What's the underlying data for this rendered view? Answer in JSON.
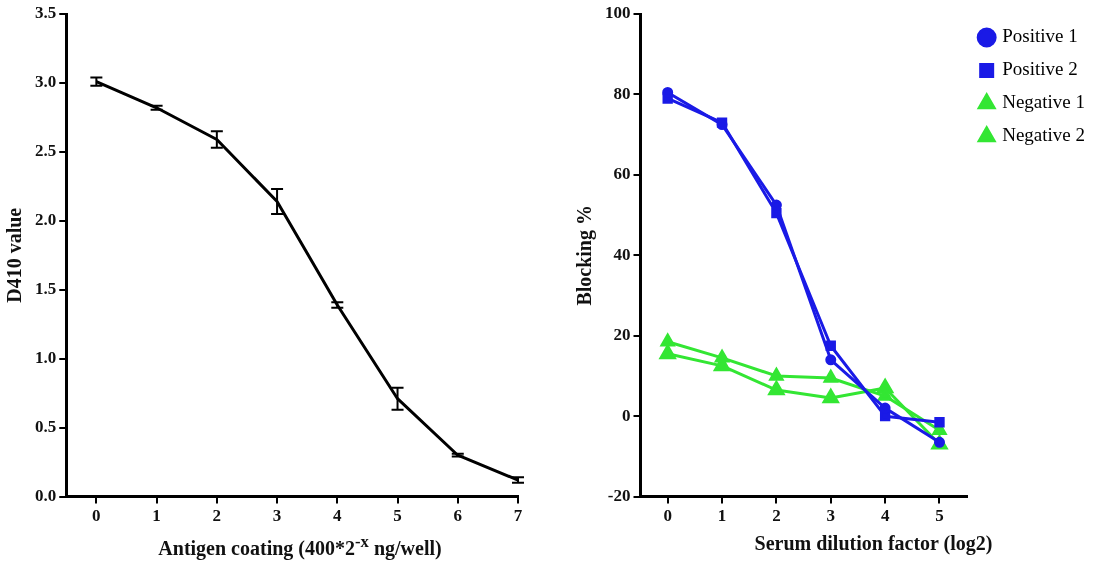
{
  "chart_data": [
    {
      "type": "line",
      "xlabel": "Antigen coating (400*2$^{-x}$ ng/well)",
      "ylabel": "D410 value",
      "x": [
        0,
        1,
        2,
        3,
        4,
        5,
        6,
        7
      ],
      "series": [
        {
          "color": "#000000",
          "values": [
            3.01,
            2.82,
            2.59,
            2.14,
            1.39,
            0.71,
            0.3,
            0.12
          ],
          "errors": [
            0.03,
            0.015,
            0.06,
            0.09,
            0.02,
            0.08,
            0.01,
            0.02
          ]
        }
      ],
      "xlim": [
        -0.5,
        7
      ],
      "xticks": [
        0,
        1,
        2,
        3,
        4,
        5,
        6,
        7
      ],
      "ylim": [
        0,
        3.5
      ],
      "yticks": [
        {
          "value": 0,
          "label": "0.0"
        },
        0.5,
        {
          "value": 1,
          "label": "1.0"
        },
        1.5,
        {
          "value": 2,
          "label": "2.0"
        },
        2.5,
        {
          "value": 3,
          "label": "3.0"
        },
        3.5
      ],
      "grid": false,
      "legend": false,
      "marker": "none"
    },
    {
      "type": "line",
      "xlabel": "Serum dilution factor (log2)",
      "ylabel": "Blocking %",
      "x": [
        0,
        1,
        2,
        3,
        4,
        5
      ],
      "series": [
        {
          "name": "Positive 1",
          "color": "#1a1ae6",
          "marker": "circle",
          "values": [
            80.5,
            72.5,
            52.5,
            14,
            2,
            -6.5
          ]
        },
        {
          "name": "Positive 2",
          "color": "#1a1ae6",
          "marker": "square",
          "values": [
            79,
            73,
            50.5,
            17.5,
            0,
            -1.5
          ]
        },
        {
          "name": "Negative 1",
          "color": "#33e633",
          "marker": "triangle",
          "values": [
            18.5,
            14.5,
            10,
            9.5,
            5,
            -3.5
          ]
        },
        {
          "name": "Negative 2",
          "color": "#33e633",
          "marker": "triangle",
          "values": [
            15.5,
            12.5,
            6.5,
            4.5,
            7,
            -7
          ]
        }
      ],
      "xlim": [
        -0.5,
        5.5
      ],
      "xticks": [
        0,
        1,
        2,
        3,
        4,
        5
      ],
      "ylim": [
        -20,
        100
      ],
      "yticks": [
        -20,
        0,
        20,
        40,
        60,
        80,
        100
      ],
      "grid": false,
      "legend": "top right"
    }
  ]
}
